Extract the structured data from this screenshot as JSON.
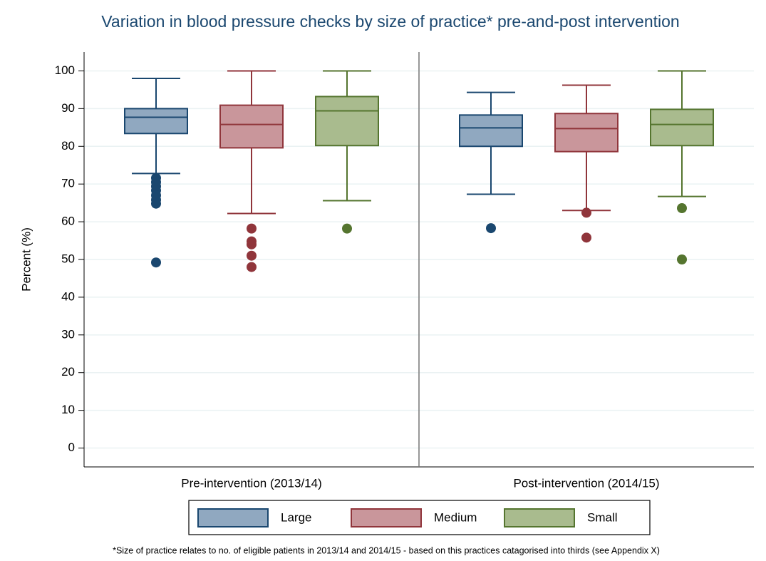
{
  "chart_data": {
    "type": "box",
    "title": "Variation in blood pressure checks by size of practice* pre-and-post intervention",
    "ylabel": "Percent (%)",
    "footnote": "*Size of practice relates to no. of eligible patients in 2013/14 and 2014/15 - based on this practices catagorised into thirds (see Appendix X)",
    "categories": [
      "Pre-intervention (2013/14)",
      "Post-intervention (2014/15)"
    ],
    "ylim": [
      -5,
      105
    ],
    "yticks": [
      0,
      10,
      20,
      30,
      40,
      50,
      60,
      70,
      80,
      90,
      100
    ],
    "grid": true,
    "legend": "bottom",
    "series": [
      {
        "name": "Large",
        "color": "#1a476f",
        "fill": "#90a8c0",
        "values": [
          {
            "whislo": 72.8,
            "q1": 83.4,
            "med": 87.7,
            "q3": 90,
            "whishi": 98,
            "fliers": [
              71.6,
              70.5,
              69.4,
              68.3,
              67,
              65.8,
              64.8,
              49.2
            ]
          },
          {
            "whislo": 67.3,
            "q1": 80,
            "med": 84.9,
            "q3": 88.3,
            "whishi": 94.3,
            "fliers": [
              58.3
            ]
          }
        ]
      },
      {
        "name": "Medium",
        "color": "#90353b",
        "fill": "#c9969b",
        "values": [
          {
            "whislo": 62.2,
            "q1": 79.6,
            "med": 85.8,
            "q3": 90.9,
            "whishi": 100,
            "fliers": [
              58.2,
              54.8,
              54,
              51,
              48
            ]
          },
          {
            "whislo": 63,
            "q1": 78.6,
            "med": 84.7,
            "q3": 88.7,
            "whishi": 96.2,
            "fliers": [
              62.4,
              55.8
            ]
          }
        ]
      },
      {
        "name": "Small",
        "color": "#55752f",
        "fill": "#a9bb8e",
        "values": [
          {
            "whislo": 65.6,
            "q1": 80.2,
            "med": 89.4,
            "q3": 93.2,
            "whishi": 100,
            "fliers": [
              58.2
            ]
          },
          {
            "whislo": 66.7,
            "q1": 80.2,
            "med": 85.8,
            "q3": 89.8,
            "whishi": 100,
            "fliers": [
              63.6,
              50
            ]
          }
        ]
      }
    ]
  }
}
